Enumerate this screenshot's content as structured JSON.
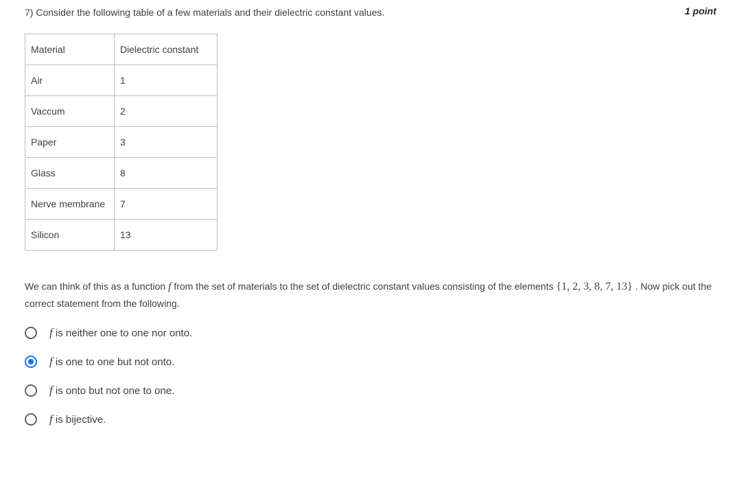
{
  "question": {
    "number_prefix": "7) ",
    "text": "Consider the following table of a few materials and their dielectric constant values.",
    "points": "1 point"
  },
  "table": {
    "columns": [
      "Material",
      "Dielectric constant"
    ],
    "rows": [
      [
        "Air",
        "1"
      ],
      [
        "Vaccum",
        "2"
      ],
      [
        "Paper",
        "3"
      ],
      [
        "Glass",
        "8"
      ],
      [
        "Nerve membrane",
        "7"
      ],
      [
        "Silicon",
        "13"
      ]
    ],
    "border_color": "#bdbdbd",
    "text_color": "#3c4043",
    "cell_padding": "14px 8px"
  },
  "description": {
    "pre": "We can think of this as a function ",
    "f": "f",
    "mid": " from the set of materials to the set of dielectric constant values consisting of the elements ",
    "set": "{1, 2, 3, 8, 7, 13}",
    "post": " . Now pick out the correct statement from the following."
  },
  "options": [
    {
      "f": "f",
      "text": " is neither one to one nor onto.",
      "selected": false
    },
    {
      "f": "f",
      "text": " is one to one but not onto.",
      "selected": true
    },
    {
      "f": "f",
      "text": " is onto but not one to one.",
      "selected": false
    },
    {
      "f": "f",
      "text": " is bijective.",
      "selected": false
    }
  ],
  "colors": {
    "background": "#ffffff",
    "text": "#3c4043",
    "radio_unselected": "#5f6368",
    "radio_selected": "#1a73e8"
  }
}
